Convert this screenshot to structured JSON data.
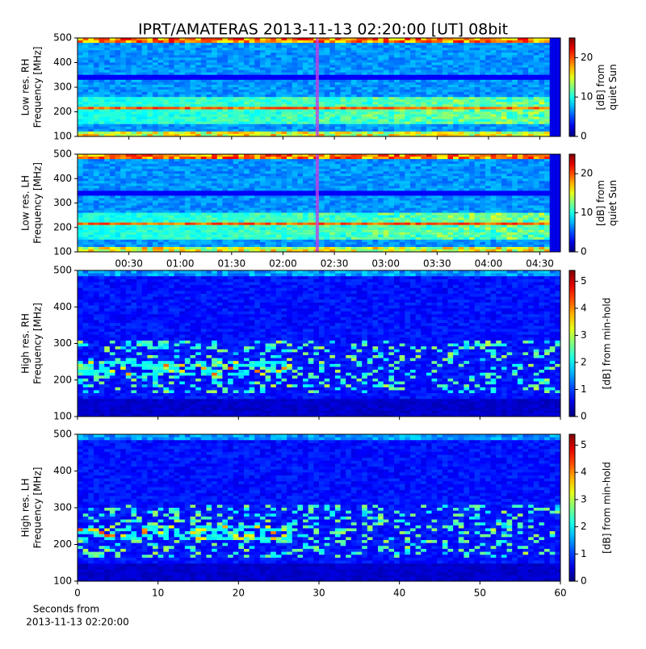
{
  "title": "IPRT/AMATERAS 2013-11-13 02:20:00 [UT]   08bit",
  "chart_data": [
    {
      "type": "spectrogram",
      "ylabel": [
        "Low res. RH",
        "Frequency [MHz]"
      ],
      "ylim": [
        100,
        500
      ],
      "yticks": [
        100,
        200,
        300,
        400,
        500
      ],
      "xlim": [
        0,
        282
      ],
      "xticks": [
        30,
        60,
        90,
        120,
        150,
        180,
        210,
        240,
        270
      ],
      "xtick_labels": false,
      "marker_x": 140,
      "marker_color": "#c040e0",
      "colorbar": {
        "label": [
          "[dB] from",
          "quiet Sun"
        ],
        "lim": [
          0,
          25
        ],
        "ticks": [
          0,
          10,
          20
        ]
      }
    },
    {
      "type": "spectrogram",
      "ylabel": [
        "Low res. LH",
        "Frequency [MHz]"
      ],
      "ylim": [
        100,
        500
      ],
      "yticks": [
        100,
        200,
        300,
        400,
        500
      ],
      "xlim": [
        0,
        282
      ],
      "xticks": [
        {
          "value": 30,
          "label": "00:30"
        },
        {
          "value": 60,
          "label": "01:00"
        },
        {
          "value": 90,
          "label": "01:30"
        },
        {
          "value": 120,
          "label": "02:00"
        },
        {
          "value": 150,
          "label": "02:30"
        },
        {
          "value": 180,
          "label": "03:00"
        },
        {
          "value": 210,
          "label": "03:30"
        },
        {
          "value": 240,
          "label": "04:00"
        },
        {
          "value": 270,
          "label": "04:30"
        }
      ],
      "xtick_labels": true,
      "marker_x": 140,
      "marker_color": "#c040e0",
      "colorbar": {
        "label": [
          "[dB] from",
          "quiet Sun"
        ],
        "lim": [
          0,
          25
        ],
        "ticks": [
          0,
          10,
          20
        ]
      }
    },
    {
      "type": "spectrogram",
      "ylabel": [
        "High res. RH",
        "Frequency [MHz]"
      ],
      "ylim": [
        100,
        500
      ],
      "yticks": [
        100,
        200,
        300,
        400,
        500
      ],
      "xlim": [
        0,
        60
      ],
      "xticks": [
        0,
        10,
        20,
        30,
        40,
        50,
        60
      ],
      "xtick_labels": false,
      "colorbar": {
        "label": [
          "[dB] from min-hold"
        ],
        "lim": [
          0,
          5.4
        ],
        "ticks": [
          0,
          1,
          2,
          3,
          4,
          5
        ]
      }
    },
    {
      "type": "spectrogram",
      "ylabel": [
        "High res. LH",
        "Frequency [MHz]"
      ],
      "ylim": [
        100,
        500
      ],
      "yticks": [
        100,
        200,
        300,
        400,
        500
      ],
      "xlim": [
        0,
        60
      ],
      "xticks": [
        0,
        10,
        20,
        30,
        40,
        50,
        60
      ],
      "xtick_labels": true,
      "xlabel": [
        "Seconds from",
        "2013-11-13 02:20:00"
      ],
      "colorbar": {
        "label": [
          "[dB] from min-hold"
        ],
        "lim": [
          0,
          5.4
        ],
        "ticks": [
          0,
          1,
          2,
          3,
          4,
          5
        ]
      }
    }
  ]
}
